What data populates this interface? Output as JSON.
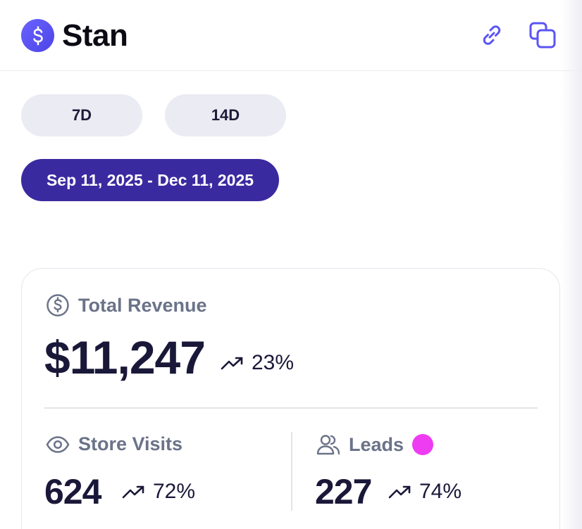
{
  "header": {
    "brand": "Stan",
    "logo_icon": "dollar-sign-icon",
    "accent": "#5b54f5",
    "actions": [
      {
        "name": "link-icon"
      },
      {
        "name": "copy-icon"
      }
    ]
  },
  "date_filters": {
    "options": [
      "7D",
      "14D"
    ],
    "selected_range": "Sep 11, 2025 - Dec 11, 2025",
    "selected_color": "#3a2aa0"
  },
  "metrics": {
    "revenue": {
      "label": "Total Revenue",
      "value": "$11,247",
      "change": "23%",
      "icon": "dollar-circle-icon"
    },
    "visits": {
      "label": "Store Visits",
      "value": "624",
      "change": "72%",
      "icon": "eye-icon"
    },
    "leads": {
      "label": "Leads",
      "value": "227",
      "change": "74%",
      "icon": "users-icon",
      "dot_color": "#ee3cf2"
    }
  }
}
